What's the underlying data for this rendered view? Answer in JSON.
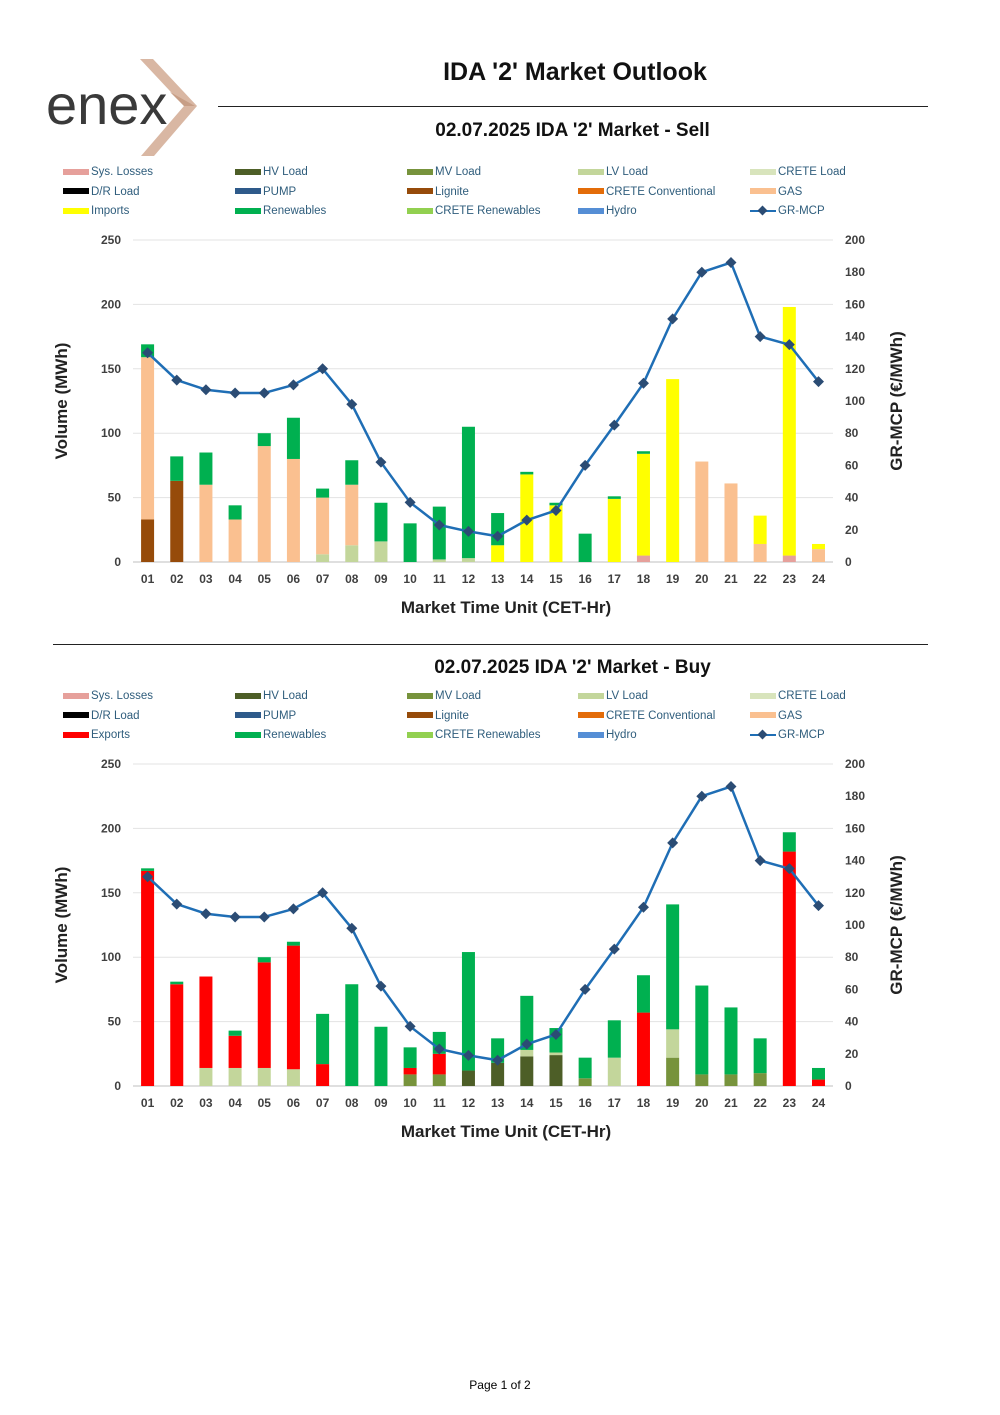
{
  "header": {
    "title": "IDA '2' Market Outlook",
    "logo_text": "enex"
  },
  "footer": {
    "page_label": "Page 1 of 2"
  },
  "colors": {
    "Sys. Losses": "#e6a09b",
    "HV Load": "#4d5e27",
    "MV Load": "#77933c",
    "LV Load": "#c3d69b",
    "CRETE Load": "#d8e4bc",
    "D/R Load": "#000000",
    "PUMP": "#2e5a8a",
    "Lignite": "#964b0a",
    "CRETE Conventional": "#e36c09",
    "GAS": "#fac090",
    "Imports": "#ffff00",
    "Exports": "#ff0000",
    "Renewables": "#00b050",
    "CRETE Renewables": "#92d050",
    "Hydro": "#558ed5",
    "GR-MCP": "#1f6eb5",
    "GR-MCP marker": "#2b4c74"
  },
  "chart_data": [
    {
      "type": "bar",
      "stacked": true,
      "title": "02.07.2025  IDA '2' Market - Sell",
      "xlabel": "Market Time Unit (CET-Hr)",
      "ylabel": "Volume (MWh)",
      "y2label": "GR-MCP (€/MWh)",
      "ylim": [
        0,
        250
      ],
      "y2lim": [
        0,
        200
      ],
      "yticks": [
        "0",
        "50",
        "100",
        "150",
        "200",
        "250"
      ],
      "y2ticks": [
        "0",
        "20",
        "40",
        "60",
        "80",
        "100",
        "120",
        "140",
        "160",
        "180",
        "200"
      ],
      "legend": [
        "Sys. Losses",
        "HV Load",
        "MV Load",
        "LV Load",
        "CRETE Load",
        "D/R Load",
        "PUMP",
        "Lignite",
        "CRETE Conventional",
        "GAS",
        "Imports",
        "Renewables",
        "CRETE Renewables",
        "Hydro",
        "GR-MCP"
      ],
      "categories": [
        "01",
        "02",
        "03",
        "04",
        "05",
        "06",
        "07",
        "08",
        "09",
        "10",
        "11",
        "12",
        "13",
        "14",
        "15",
        "16",
        "17",
        "18",
        "19",
        "20",
        "21",
        "22",
        "23",
        "24"
      ],
      "series": [
        {
          "name": "Lignite",
          "values": [
            33,
            63,
            0,
            0,
            0,
            0,
            0,
            0,
            0,
            0,
            0,
            0,
            0,
            0,
            0,
            0,
            0,
            0,
            0,
            0,
            0,
            0,
            0,
            0
          ]
        },
        {
          "name": "Sys. Losses",
          "values": [
            0,
            0,
            0,
            0,
            0,
            0,
            0,
            0,
            0,
            0,
            0,
            0,
            0,
            0,
            0,
            0,
            0,
            5,
            0,
            0,
            0,
            0,
            5,
            0
          ]
        },
        {
          "name": "LV Load",
          "values": [
            0,
            0,
            0,
            0,
            0,
            0,
            6,
            13,
            16,
            0,
            2,
            3,
            0,
            0,
            0,
            0,
            0,
            0,
            0,
            0,
            0,
            0,
            0,
            0
          ]
        },
        {
          "name": "GAS",
          "values": [
            126,
            0,
            60,
            33,
            90,
            80,
            44,
            47,
            0,
            0,
            0,
            0,
            0,
            0,
            0,
            0,
            0,
            0,
            0,
            78,
            61,
            14,
            0,
            10
          ]
        },
        {
          "name": "Imports",
          "values": [
            0,
            0,
            0,
            0,
            0,
            0,
            0,
            0,
            0,
            0,
            0,
            0,
            13,
            68,
            44,
            0,
            49,
            79,
            142,
            0,
            0,
            22,
            193,
            4
          ]
        },
        {
          "name": "Renewables",
          "values": [
            10,
            19,
            25,
            11,
            10,
            32,
            7,
            19,
            30,
            30,
            41,
            102,
            25,
            2,
            2,
            22,
            2,
            2,
            0,
            0,
            0,
            0,
            0,
            0
          ]
        }
      ],
      "line": {
        "name": "GR-MCP",
        "values": [
          130,
          113,
          107,
          105,
          105,
          110,
          120,
          98,
          62,
          37,
          23,
          19,
          16,
          26,
          32,
          60,
          85,
          111,
          151,
          180,
          186,
          140,
          135,
          112
        ]
      }
    },
    {
      "type": "bar",
      "stacked": true,
      "title": "02.07.2025  IDA '2' Market - Buy",
      "xlabel": "Market Time Unit (CET-Hr)",
      "ylabel": "Volume (MWh)",
      "y2label": "GR-MCP (€/MWh)",
      "ylim": [
        0,
        250
      ],
      "y2lim": [
        0,
        200
      ],
      "yticks": [
        "0",
        "50",
        "100",
        "150",
        "200",
        "250"
      ],
      "y2ticks": [
        "0",
        "20",
        "40",
        "60",
        "80",
        "100",
        "120",
        "140",
        "160",
        "180",
        "200"
      ],
      "legend": [
        "Sys. Losses",
        "HV Load",
        "MV Load",
        "LV Load",
        "CRETE Load",
        "D/R Load",
        "PUMP",
        "Lignite",
        "CRETE Conventional",
        "GAS",
        "Exports",
        "Renewables",
        "CRETE Renewables",
        "Hydro",
        "GR-MCP"
      ],
      "categories": [
        "01",
        "02",
        "03",
        "04",
        "05",
        "06",
        "07",
        "08",
        "09",
        "10",
        "11",
        "12",
        "13",
        "14",
        "15",
        "16",
        "17",
        "18",
        "19",
        "20",
        "21",
        "22",
        "23",
        "24"
      ],
      "series": [
        {
          "name": "HV Load",
          "values": [
            0,
            0,
            0,
            0,
            0,
            0,
            0,
            0,
            0,
            0,
            0,
            12,
            18,
            23,
            24,
            0,
            0,
            0,
            0,
            0,
            0,
            0,
            0,
            0
          ]
        },
        {
          "name": "MV Load",
          "values": [
            0,
            0,
            0,
            0,
            0,
            0,
            0,
            0,
            0,
            9,
            9,
            0,
            0,
            0,
            0,
            6,
            0,
            0,
            22,
            9,
            9,
            10,
            0,
            0
          ]
        },
        {
          "name": "LV Load",
          "values": [
            0,
            0,
            14,
            14,
            14,
            13,
            0,
            0,
            0,
            0,
            0,
            0,
            0,
            5,
            2,
            0,
            22,
            0,
            22,
            0,
            0,
            0,
            0,
            0
          ]
        },
        {
          "name": "Exports",
          "values": [
            167,
            79,
            71,
            25,
            82,
            96,
            17,
            0,
            0,
            5,
            16,
            0,
            0,
            0,
            0,
            0,
            0,
            57,
            0,
            0,
            0,
            0,
            182,
            5
          ]
        },
        {
          "name": "Renewables",
          "values": [
            2,
            2,
            0,
            4,
            4,
            3,
            39,
            79,
            46,
            16,
            17,
            92,
            19,
            42,
            19,
            16,
            29,
            29,
            97,
            69,
            52,
            27,
            15,
            9
          ]
        }
      ],
      "line": {
        "name": "GR-MCP",
        "values": [
          130,
          113,
          107,
          105,
          105,
          110,
          120,
          98,
          62,
          37,
          23,
          19,
          16,
          26,
          32,
          60,
          85,
          111,
          151,
          180,
          186,
          140,
          135,
          112
        ]
      }
    }
  ]
}
